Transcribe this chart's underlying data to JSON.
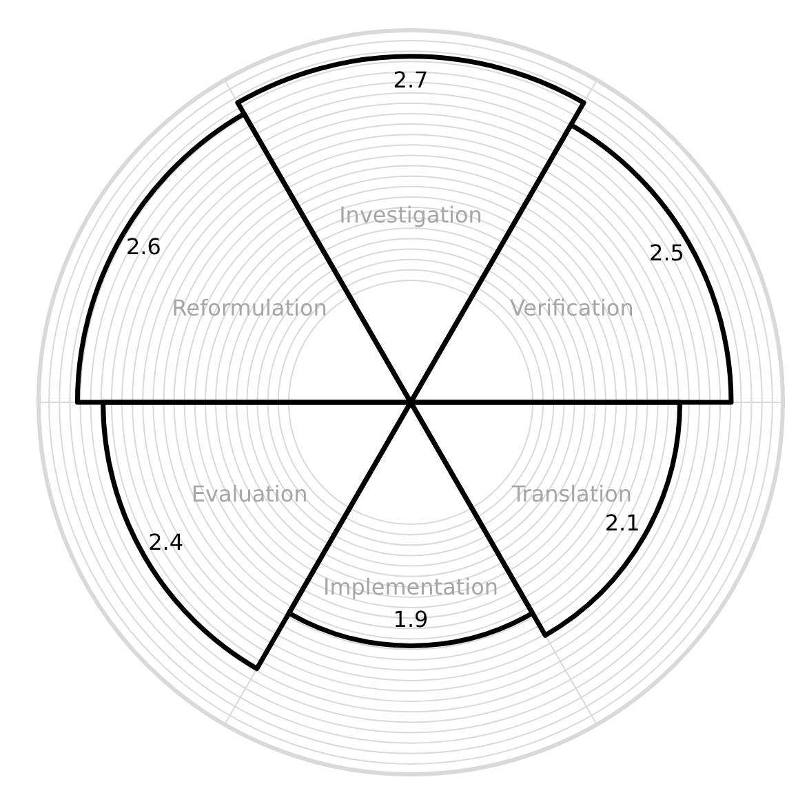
{
  "chart_data": {
    "type": "other",
    "categories": [
      "Investigation",
      "Verification",
      "Translation",
      "Implementation",
      "Evaluation",
      "Reformulation"
    ],
    "series": [
      {
        "color": "#000000",
        "values": [
          2.7,
          2.5,
          2.1,
          1.9,
          2.4,
          2.6
        ]
      }
    ],
    "data_labels": true
  }
}
